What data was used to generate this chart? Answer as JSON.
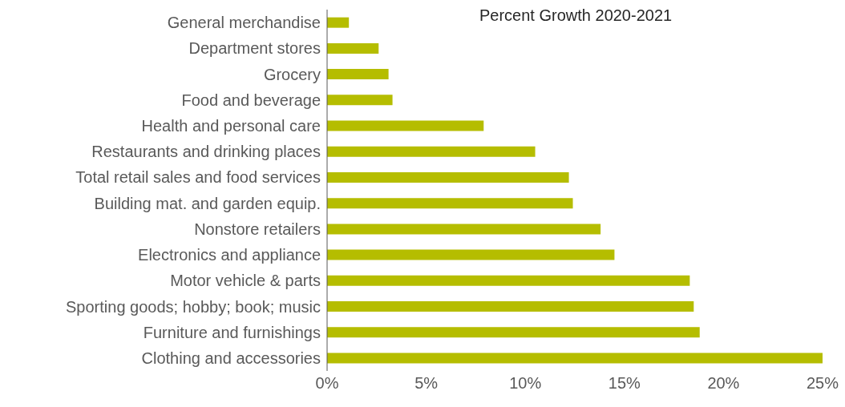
{
  "chart_data": {
    "type": "bar",
    "orientation": "horizontal",
    "title": "Percent Growth 2020-2021",
    "categories": [
      "General merchandise",
      "Department stores",
      "Grocery",
      "Food and beverage",
      "Health and personal care",
      "Restaurants and drinking places",
      "Total retail sales and food services",
      "Building mat. and garden equip.",
      "Nonstore retailers",
      "Electronics and appliance",
      "Motor vehicle & parts",
      "Sporting goods; hobby; book; music",
      "Furniture and furnishings",
      "Clothing and accessories"
    ],
    "values": [
      1.1,
      2.6,
      3.1,
      3.3,
      7.9,
      10.5,
      12.2,
      12.4,
      13.8,
      14.5,
      18.3,
      18.5,
      18.8,
      25.0
    ],
    "color": "#b5bd00",
    "xlim": [
      0,
      25
    ],
    "xticks": [
      {
        "value": 0,
        "label": "0%"
      },
      {
        "value": 5,
        "label": "5%"
      },
      {
        "value": 10,
        "label": "10%"
      },
      {
        "value": 15,
        "label": "15%"
      },
      {
        "value": 20,
        "label": "20%"
      },
      {
        "value": 25,
        "label": "25%"
      }
    ],
    "grid": false,
    "legend": false
  }
}
